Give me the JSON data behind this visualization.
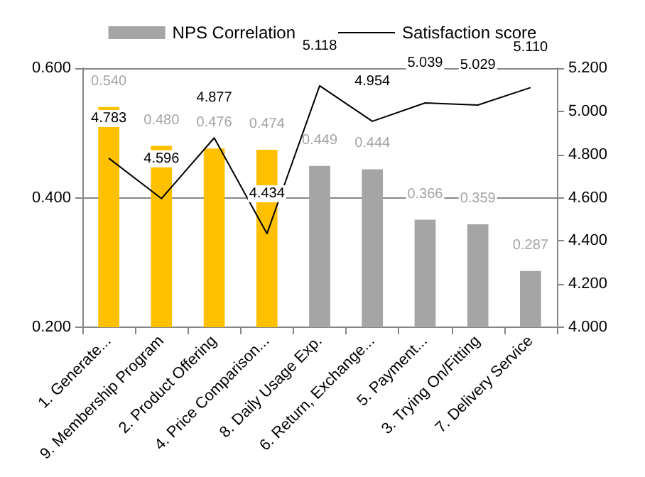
{
  "chart_data": {
    "type": "bar",
    "categories": [
      "1. Generate...",
      "9. Membership Program",
      "2. Product Offering",
      "4. Price Comparison...",
      "8. Daily Usage Exp.",
      "6. Return, Exchange...",
      "5. Payment...",
      "3. Trying On/Fitting",
      "7. Delivery Service"
    ],
    "series": [
      {
        "name": "NPS Correlation",
        "color": "#a5a5a5",
        "colors": [
          "#ffc000",
          "#ffc000",
          "#ffc000",
          "#ffc000",
          "#a5a5a5",
          "#a5a5a5",
          "#a5a5a5",
          "#a5a5a5",
          "#a5a5a5"
        ],
        "values": [
          0.54,
          0.48,
          0.476,
          0.474,
          0.449,
          0.444,
          0.366,
          0.359,
          0.287
        ],
        "value_labels": [
          "0.540",
          "0.480",
          "0.476",
          "0.474",
          "0.449",
          "0.444",
          "0.366",
          "0.359",
          "0.287"
        ]
      },
      {
        "name": "Satisfaction score",
        "type": "line",
        "axis": "y2",
        "color": "#000000",
        "values": [
          4.783,
          4.596,
          4.877,
          4.434,
          5.118,
          4.954,
          5.039,
          5.029,
          5.11
        ],
        "value_labels": [
          "4.783",
          "4.596",
          "4.877",
          "4.434",
          "5.118",
          "4.954",
          "5.039",
          "5.029",
          "5.110"
        ]
      }
    ],
    "ylim": [
      0.2,
      0.6
    ],
    "yticks": [
      {
        "value": 0.2,
        "label": "0.200"
      },
      {
        "value": 0.4,
        "label": "0.400"
      },
      {
        "value": 0.6,
        "label": "0.600"
      }
    ],
    "y2lim": [
      4.0,
      5.2
    ],
    "y2ticks": [
      {
        "value": 4.0,
        "label": "4.000"
      },
      {
        "value": 4.2,
        "label": "4.200"
      },
      {
        "value": 4.4,
        "label": "4.400"
      },
      {
        "value": 4.6,
        "label": "4.600"
      },
      {
        "value": 4.8,
        "label": "4.800"
      },
      {
        "value": 5.0,
        "label": "5.000"
      },
      {
        "value": 5.2,
        "label": "5.200"
      }
    ],
    "grid": "y",
    "legend": "top",
    "marker": "none",
    "line_style": "solid"
  }
}
